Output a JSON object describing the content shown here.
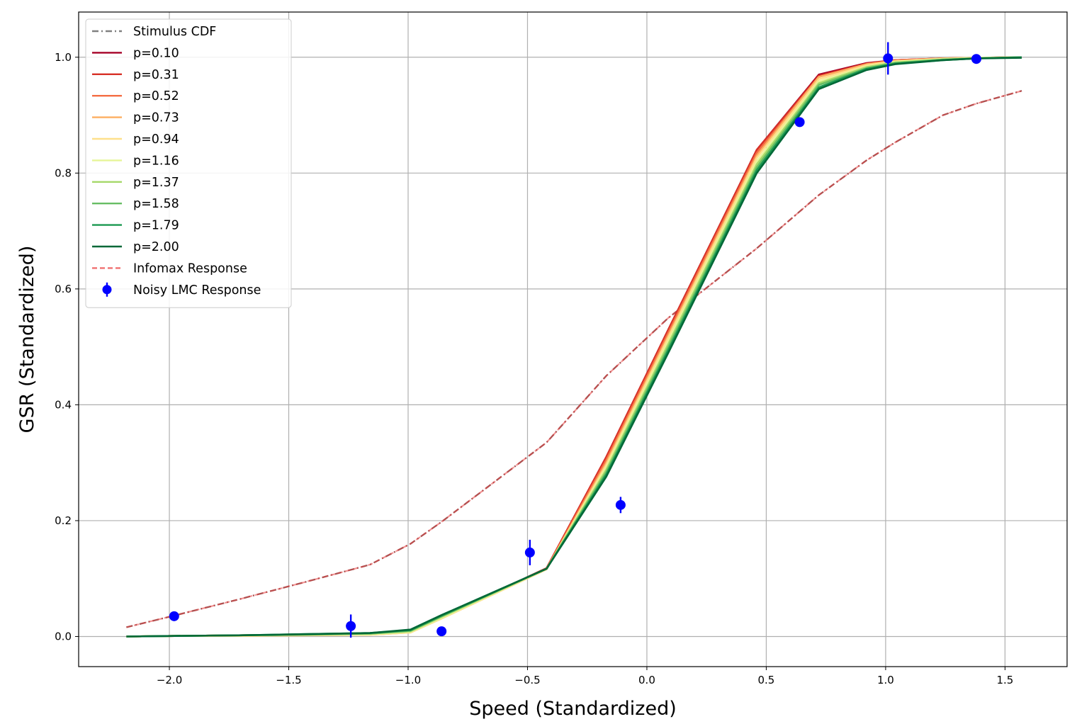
{
  "chart_data": {
    "type": "line",
    "title": "",
    "xlabel": "Speed (Standardized)",
    "ylabel": "GSR (Standardized)",
    "xlim": [
      -2.38,
      1.76
    ],
    "ylim": [
      -0.052,
      1.078
    ],
    "xticks": [
      -2.0,
      -1.5,
      -1.0,
      -0.5,
      0.0,
      0.5,
      1.0,
      1.5
    ],
    "xtick_labels": [
      "−2.0",
      "−1.5",
      "−1.0",
      "−0.5",
      "0.0",
      "0.5",
      "1.0",
      "1.5"
    ],
    "yticks": [
      0.0,
      0.2,
      0.4,
      0.6,
      0.8,
      1.0
    ],
    "ytick_labels": [
      "0.0",
      "0.2",
      "0.4",
      "0.6",
      "0.8",
      "1.0"
    ],
    "grid": true,
    "legend_position": "top-left",
    "x": [
      -2.18,
      -1.98,
      -1.71,
      -1.44,
      -1.16,
      -0.99,
      -0.86,
      -0.42,
      -0.17,
      0.09,
      0.46,
      0.72,
      0.92,
      1.04,
      1.24,
      1.38,
      1.57
    ],
    "series": [
      {
        "name": "Stimulus CDF",
        "style": "dashdot",
        "color": "#808080",
        "values": [
          0.016,
          0.036,
          0.064,
          0.093,
          0.124,
          0.16,
          0.198,
          0.335,
          0.45,
          0.55,
          0.67,
          0.762,
          0.822,
          0.853,
          0.9,
          0.92,
          0.942
        ]
      },
      {
        "name": "Infomax Response",
        "style": "dashed",
        "color": "#f07070",
        "values": [
          0.016,
          0.036,
          0.064,
          0.093,
          0.124,
          0.16,
          0.198,
          0.335,
          0.45,
          0.55,
          0.67,
          0.762,
          0.822,
          0.853,
          0.9,
          0.92,
          0.942
        ]
      },
      {
        "name": "p=0.10",
        "color": "#a50026",
        "values": [
          0.0,
          0.001,
          0.002,
          0.003,
          0.004,
          0.008,
          0.033,
          0.118,
          0.31,
          0.53,
          0.84,
          0.97,
          0.99,
          0.995,
          0.998,
          0.999,
          1.0
        ]
      },
      {
        "name": "p=0.31",
        "color": "#d73027",
        "values": [
          0.0,
          0.001,
          0.002,
          0.003,
          0.004,
          0.008,
          0.033,
          0.118,
          0.31,
          0.53,
          0.84,
          0.968,
          0.989,
          0.995,
          0.998,
          0.999,
          1.0
        ]
      },
      {
        "name": "p=0.52",
        "color": "#f46d43",
        "values": [
          0.0,
          0.001,
          0.002,
          0.003,
          0.004,
          0.008,
          0.032,
          0.117,
          0.305,
          0.525,
          0.835,
          0.966,
          0.988,
          0.994,
          0.998,
          0.999,
          1.0
        ]
      },
      {
        "name": "p=0.73",
        "color": "#fdae61",
        "values": [
          0.0,
          0.001,
          0.001,
          0.002,
          0.003,
          0.007,
          0.031,
          0.116,
          0.3,
          0.52,
          0.83,
          0.966,
          0.988,
          0.994,
          0.998,
          0.999,
          1.0
        ]
      },
      {
        "name": "p=0.94",
        "color": "#fee08b",
        "values": [
          0.0,
          0.001,
          0.001,
          0.002,
          0.003,
          0.007,
          0.031,
          0.116,
          0.296,
          0.516,
          0.826,
          0.962,
          0.986,
          0.993,
          0.997,
          0.999,
          1.0
        ]
      },
      {
        "name": "p=1.16",
        "color": "#e6f598",
        "values": [
          0.0,
          0.001,
          0.002,
          0.003,
          0.004,
          0.008,
          0.032,
          0.117,
          0.292,
          0.51,
          0.82,
          0.958,
          0.984,
          0.992,
          0.997,
          0.999,
          1.0
        ]
      },
      {
        "name": "p=1.37",
        "color": "#a6d96a",
        "values": [
          0.0,
          0.001,
          0.002,
          0.003,
          0.005,
          0.009,
          0.034,
          0.117,
          0.288,
          0.505,
          0.815,
          0.955,
          0.983,
          0.991,
          0.996,
          0.998,
          1.0
        ]
      },
      {
        "name": "p=1.58",
        "color": "#66bd63",
        "values": [
          0.0,
          0.001,
          0.002,
          0.003,
          0.005,
          0.01,
          0.035,
          0.117,
          0.284,
          0.5,
          0.81,
          0.952,
          0.981,
          0.99,
          0.996,
          0.998,
          1.0
        ]
      },
      {
        "name": "p=1.79",
        "color": "#1a9850",
        "values": [
          0.0,
          0.001,
          0.002,
          0.004,
          0.006,
          0.011,
          0.036,
          0.117,
          0.28,
          0.495,
          0.805,
          0.948,
          0.98,
          0.989,
          0.995,
          0.998,
          1.0
        ]
      },
      {
        "name": "p=2.00",
        "color": "#006837",
        "values": [
          0.0,
          0.001,
          0.002,
          0.004,
          0.006,
          0.012,
          0.037,
          0.117,
          0.276,
          0.49,
          0.8,
          0.945,
          0.978,
          0.988,
          0.995,
          0.998,
          0.999
        ]
      }
    ],
    "scatter": {
      "name": "Noisy LMC Response",
      "color": "#0000ff",
      "points": [
        {
          "x": -1.98,
          "y": 0.035,
          "err": 0.005
        },
        {
          "x": -1.24,
          "y": 0.018,
          "err": 0.02
        },
        {
          "x": -0.86,
          "y": 0.009,
          "err": 0.004
        },
        {
          "x": -0.49,
          "y": 0.145,
          "err": 0.022
        },
        {
          "x": -0.11,
          "y": 0.227,
          "err": 0.014
        },
        {
          "x": 0.64,
          "y": 0.888,
          "err": 0.006
        },
        {
          "x": 1.01,
          "y": 0.998,
          "err": 0.028
        },
        {
          "x": 1.38,
          "y": 0.997,
          "err": 0.004
        }
      ]
    }
  }
}
